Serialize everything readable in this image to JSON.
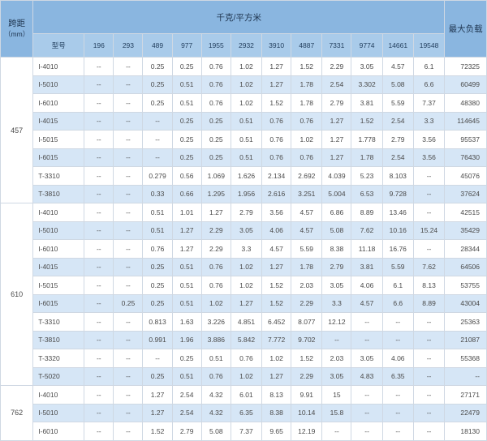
{
  "header": {
    "span_label_line1": "跨距",
    "span_label_line2": "（mm）",
    "load_group_label": "千克/平方米",
    "max_load_label": "最大负载",
    "type_label": "型号",
    "load_columns": [
      "196",
      "293",
      "489",
      "977",
      "1955",
      "2932",
      "3910",
      "4887",
      "7331",
      "9774",
      "14661",
      "19548"
    ]
  },
  "groups": [
    {
      "span": "457",
      "rows": [
        {
          "type": "I-4010",
          "values": [
            "--",
            "--",
            "0.25",
            "0.25",
            "0.76",
            "1.02",
            "1.27",
            "1.52",
            "2.29",
            "3.05",
            "4.57",
            "6.1"
          ],
          "max": "72325"
        },
        {
          "type": "I-5010",
          "values": [
            "--",
            "--",
            "0.25",
            "0.51",
            "0.76",
            "1.02",
            "1.27",
            "1.78",
            "2.54",
            "3.302",
            "5.08",
            "6.6"
          ],
          "max": "60499"
        },
        {
          "type": "I-6010",
          "values": [
            "--",
            "--",
            "0.25",
            "0.51",
            "0.76",
            "1.02",
            "1.52",
            "1.78",
            "2.79",
            "3.81",
            "5.59",
            "7.37"
          ],
          "max": "48380"
        },
        {
          "type": "I-4015",
          "values": [
            "--",
            "--",
            "--",
            "0.25",
            "0.25",
            "0.51",
            "0.76",
            "0.76",
            "1.27",
            "1.52",
            "2.54",
            "3.3"
          ],
          "max": "114645"
        },
        {
          "type": "I-5015",
          "values": [
            "--",
            "--",
            "--",
            "0.25",
            "0.25",
            "0.51",
            "0.76",
            "1.02",
            "1.27",
            "1.778",
            "2.79",
            "3.56"
          ],
          "max": "95537"
        },
        {
          "type": "I-6015",
          "values": [
            "--",
            "--",
            "--",
            "0.25",
            "0.25",
            "0.51",
            "0.76",
            "0.76",
            "1.27",
            "1.78",
            "2.54",
            "3.56"
          ],
          "max": "76430"
        },
        {
          "type": "T-3310",
          "values": [
            "--",
            "--",
            "0.279",
            "0.56",
            "1.069",
            "1.626",
            "2.134",
            "2.692",
            "4.039",
            "5.23",
            "8.103",
            "--"
          ],
          "max": "45076"
        },
        {
          "type": "T-3810",
          "values": [
            "--",
            "--",
            "0.33",
            "0.66",
            "1.295",
            "1.956",
            "2.616",
            "3.251",
            "5.004",
            "6.53",
            "9.728",
            "--"
          ],
          "max": "37624"
        }
      ]
    },
    {
      "span": "610",
      "rows": [
        {
          "type": "I-4010",
          "values": [
            "--",
            "--",
            "0.51",
            "1.01",
            "1.27",
            "2.79",
            "3.56",
            "4.57",
            "6.86",
            "8.89",
            "13.46",
            "--"
          ],
          "max": "42515"
        },
        {
          "type": "I-5010",
          "values": [
            "--",
            "--",
            "0.51",
            "1.27",
            "2.29",
            "3.05",
            "4.06",
            "4.57",
            "5.08",
            "7.62",
            "10.16",
            "15.24"
          ],
          "max": "35429"
        },
        {
          "type": "I-6010",
          "values": [
            "--",
            "--",
            "0.76",
            "1.27",
            "2.29",
            "3.3",
            "4.57",
            "5.59",
            "8.38",
            "11.18",
            "16.76",
            "--"
          ],
          "max": "28344"
        },
        {
          "type": "I-4015",
          "values": [
            "--",
            "--",
            "0.25",
            "0.51",
            "0.76",
            "1.02",
            "1.27",
            "1.78",
            "2.79",
            "3.81",
            "5.59",
            "7.62"
          ],
          "max": "64506"
        },
        {
          "type": "I-5015",
          "values": [
            "--",
            "--",
            "0.25",
            "0.51",
            "0.76",
            "1.02",
            "1.52",
            "2.03",
            "3.05",
            "4.06",
            "6.1",
            "8.13"
          ],
          "max": "53755"
        },
        {
          "type": "I-6015",
          "values": [
            "--",
            "0.25",
            "0.25",
            "0.51",
            "1.02",
            "1.27",
            "1.52",
            "2.29",
            "3.3",
            "4.57",
            "6.6",
            "8.89"
          ],
          "max": "43004"
        },
        {
          "type": "T-3310",
          "values": [
            "--",
            "--",
            "0.813",
            "1.63",
            "3.226",
            "4.851",
            "6.452",
            "8.077",
            "12.12",
            "--",
            "--",
            "--"
          ],
          "max": "25363"
        },
        {
          "type": "T-3810",
          "values": [
            "--",
            "--",
            "0.991",
            "1.96",
            "3.886",
            "5.842",
            "7.772",
            "9.702",
            "--",
            "--",
            "--",
            "--"
          ],
          "max": "21087"
        },
        {
          "type": "T-3320",
          "values": [
            "--",
            "--",
            "--",
            "0.25",
            "0.51",
            "0.76",
            "1.02",
            "1.52",
            "2.03",
            "3.05",
            "4.06",
            "--"
          ],
          "max": "55368"
        },
        {
          "type": "T-5020",
          "values": [
            "--",
            "--",
            "0.25",
            "0.51",
            "0.76",
            "1.02",
            "1.27",
            "2.29",
            "3.05",
            "4.83",
            "6.35",
            "--"
          ],
          "max": "--"
        }
      ]
    },
    {
      "span": "762",
      "rows": [
        {
          "type": "I-4010",
          "values": [
            "--",
            "--",
            "1.27",
            "2.54",
            "4.32",
            "6.01",
            "8.13",
            "9.91",
            "15",
            "--",
            "--",
            "--"
          ],
          "max": "27171"
        },
        {
          "type": "I-5010",
          "values": [
            "--",
            "--",
            "1.27",
            "2.54",
            "4.32",
            "6.35",
            "8.38",
            "10.14",
            "15.8",
            "--",
            "--",
            "--"
          ],
          "max": "22479"
        },
        {
          "type": "I-6010",
          "values": [
            "--",
            "--",
            "1.52",
            "2.79",
            "5.08",
            "7.37",
            "9.65",
            "12.19",
            "--",
            "--",
            "--",
            "--"
          ],
          "max": "18130"
        }
      ]
    }
  ],
  "colors": {
    "header_dark": "#8ab6e0",
    "header_light": "#a9cbea",
    "row_alt": "#d6e6f6",
    "border": "#cfd8e3"
  }
}
